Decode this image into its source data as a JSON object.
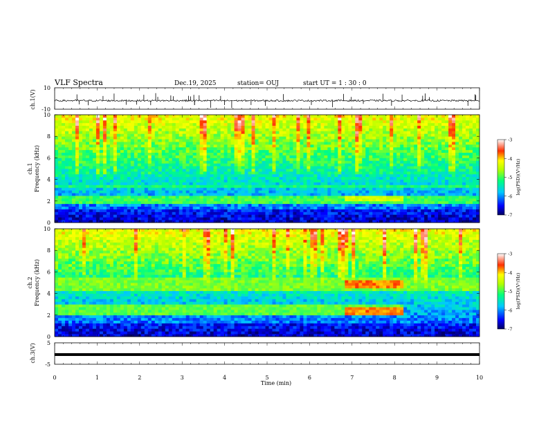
{
  "header": {
    "title": "VLF Spectra",
    "date": "Dec.19, 2025",
    "station": "station= OUJ",
    "start": "start  UT =   1 : 30 : 0"
  },
  "chart_data": [
    {
      "type": "line",
      "name": "ch1-waveform",
      "ylabel": "ch.1(V)",
      "ylim": [
        -10,
        10
      ],
      "yticks": [
        "10",
        "-10"
      ],
      "xlim": [
        0,
        10
      ],
      "baseline": -2,
      "description_series": "noisy trace near -2 V with short spikes"
    },
    {
      "type": "heatmap",
      "name": "ch1-spectrogram",
      "ylabel": "ch.1\nFrequency  (kHz)",
      "ylabel_line1": "ch.1",
      "ylabel_line2": "Frequency  (kHz)",
      "ylim": [
        0,
        10
      ],
      "yticks": [
        "0",
        "2",
        "4",
        "6",
        "8",
        "10"
      ],
      "xlim": [
        0,
        10
      ],
      "bands_khz": [
        {
          "center": 2.1,
          "width": 0.3,
          "level": -5.0,
          "until_min": 10
        },
        {
          "center": 3.4,
          "width": 0.2,
          "level": -5.2,
          "until_min": 10
        },
        {
          "center": 2.3,
          "width": 0.25,
          "level": -4.4,
          "from_min": 6.8,
          "until_min": 8.2
        }
      ],
      "colorbar": {
        "label": "log(PSD)(V²/Hz)",
        "min": -7,
        "max": -3,
        "ticks": [
          "-3",
          "-4",
          "-5",
          "-6",
          "-7"
        ]
      }
    },
    {
      "type": "heatmap",
      "name": "ch2-spectrogram",
      "ylabel_line1": "ch.2",
      "ylabel_line2": "Frequency  (kHz)",
      "ylim": [
        0,
        10
      ],
      "yticks": [
        "0",
        "2",
        "4",
        "6",
        "8",
        "10"
      ],
      "xlim": [
        0,
        10
      ],
      "bands_khz": [
        {
          "center": 4.8,
          "width": 0.6,
          "level": -4.8,
          "until_min": 10
        },
        {
          "center": 2.5,
          "width": 0.5,
          "level": -4.9,
          "until_min": 8.2
        },
        {
          "center": 4.9,
          "width": 0.3,
          "level": -3.8,
          "from_min": 6.8,
          "until_min": 8.2
        },
        {
          "center": 2.4,
          "width": 0.3,
          "level": -3.8,
          "from_min": 6.8,
          "until_min": 8.2
        }
      ],
      "colorbar": {
        "label": "log(PSD)(V²/Hz)",
        "min": -7,
        "max": -3,
        "ticks": [
          "-3",
          "-4",
          "-5",
          "-6",
          "-7"
        ]
      }
    },
    {
      "type": "line",
      "name": "ch3-waveform",
      "ylabel": "ch.3(V)",
      "ylim": [
        -5,
        5
      ],
      "yticks": [
        "5",
        "-5"
      ],
      "xlim": [
        0,
        10
      ],
      "baseline": -0.5
    }
  ],
  "xaxis": {
    "label": "Time  (min)",
    "ticks": [
      "0",
      "1",
      "2",
      "3",
      "4",
      "5",
      "6",
      "7",
      "8",
      "9",
      "10"
    ]
  }
}
